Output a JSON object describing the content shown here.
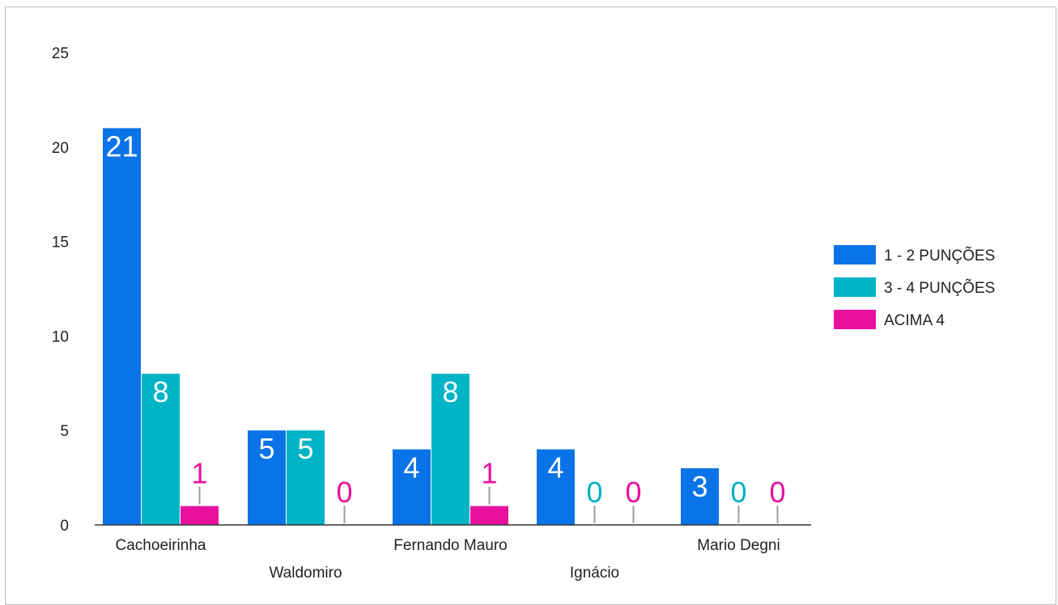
{
  "chart_data": {
    "type": "bar",
    "title": "",
    "xlabel": "",
    "ylabel": "",
    "categories": [
      "Cachoeirinha",
      "Waldomiro",
      "Fernando Mauro",
      "Ignácio",
      "Mario Degni"
    ],
    "series": [
      {
        "name": "1 - 2 PUNÇÕES",
        "color": "#0a73e8",
        "values": [
          21,
          5,
          4,
          4,
          3
        ]
      },
      {
        "name": "3 - 4 PUNÇÕES",
        "color": "#00b3c7",
        "values": [
          8,
          5,
          8,
          0,
          0
        ]
      },
      {
        "name": "ACIMA 4",
        "color": "#e8119e",
        "values": [
          1,
          0,
          1,
          0,
          0
        ]
      }
    ],
    "ylim": [
      0,
      25
    ],
    "yticks": [
      0,
      5,
      10,
      15,
      20,
      25
    ],
    "grid": false,
    "legend_position": "right",
    "data_labels": true
  }
}
